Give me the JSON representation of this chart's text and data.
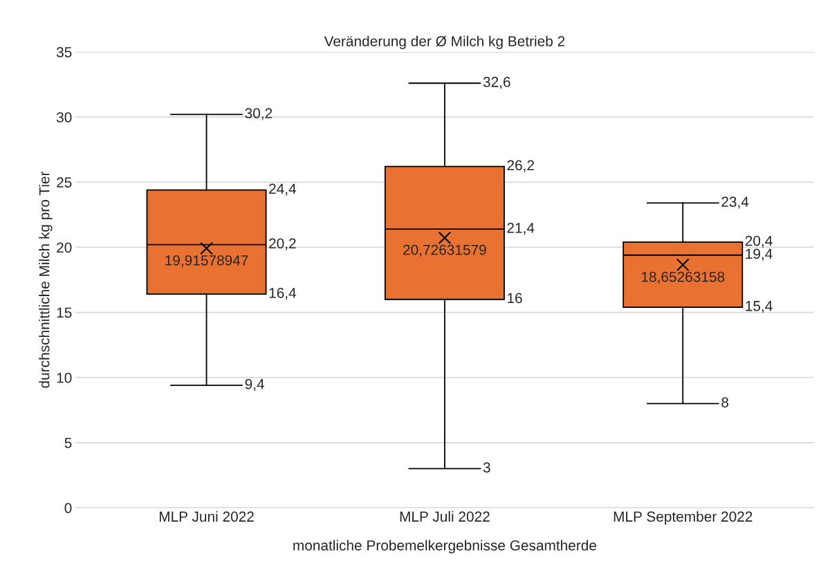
{
  "chart_data": {
    "type": "box",
    "title": "Veränderung der Ø Milch kg Betrieb 2",
    "xlabel": "monatliche Probemelkergebnisse Gesamtherde",
    "ylabel": "durchschnittliche Milch kg pro Tier",
    "categories": [
      "MLP Juni 2022",
      "MLP Juli 2022",
      "MLP September 2022"
    ],
    "series": [
      {
        "color": "#e97132",
        "boxes": [
          {
            "low": 9.4,
            "q1": 16.4,
            "median": 20.2,
            "q3": 24.4,
            "high": 30.2,
            "mean": 19.91578947
          },
          {
            "low": 3,
            "q1": 16,
            "median": 21.4,
            "q3": 26.2,
            "high": 32.6,
            "mean": 20.72631579
          },
          {
            "low": 8,
            "q1": 15.4,
            "median": 19.4,
            "q3": 20.4,
            "high": 23.4,
            "mean": 18.65263158
          }
        ],
        "value_labels": [
          {
            "low": "9,4",
            "q1": "16,4",
            "median": "20,2",
            "q3": "24,4",
            "high": "30,2",
            "mean": "19,91578947"
          },
          {
            "low": "3",
            "q1": "16",
            "median": "21,4",
            "q3": "26,2",
            "high": "32,6",
            "mean": "20,72631579"
          },
          {
            "low": "8",
            "q1": "15,4",
            "median": "19,4",
            "q3": "20,4",
            "high": "23,4",
            "mean": "18,65263158"
          }
        ]
      }
    ],
    "ylim": [
      0,
      35
    ],
    "yticks": [
      0,
      5,
      10,
      15,
      20,
      25,
      30,
      35
    ],
    "grid": "y",
    "marker": "cross"
  }
}
